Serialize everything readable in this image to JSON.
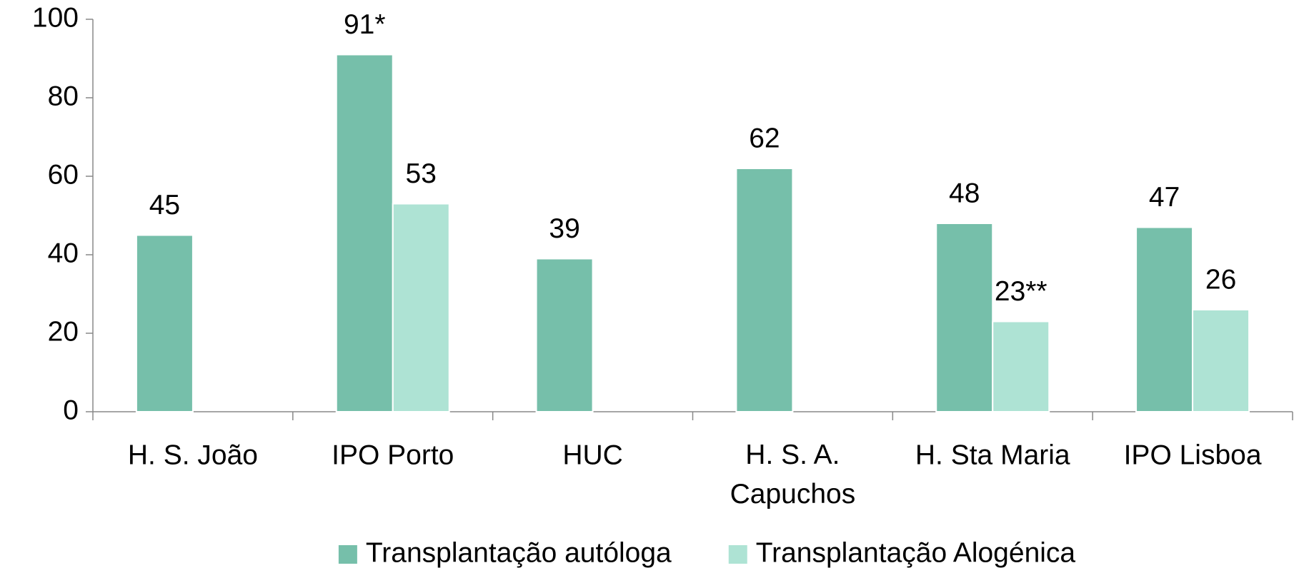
{
  "chart_data": {
    "type": "bar",
    "categories": [
      "H. S. João",
      "IPO Porto",
      "HUC",
      "H. S. A. Capuchos",
      "H. Sta Maria",
      "IPO Lisboa"
    ],
    "series": [
      {
        "name": "Transplantação autóloga",
        "color": "#76bfaa",
        "values": [
          45,
          91,
          39,
          62,
          48,
          47
        ],
        "value_labels": [
          "45",
          "91*",
          "39",
          "62",
          "48",
          "47"
        ]
      },
      {
        "name": "Transplantação Alogénica",
        "color": "#aee3d4",
        "values": [
          null,
          53,
          null,
          null,
          23,
          26
        ],
        "value_labels": [
          null,
          "53",
          null,
          null,
          "23**",
          "26"
        ]
      }
    ],
    "ylim": [
      0,
      100
    ],
    "yticks": [
      0,
      20,
      40,
      60,
      80,
      100
    ],
    "grid": false,
    "legend": "bottom"
  }
}
